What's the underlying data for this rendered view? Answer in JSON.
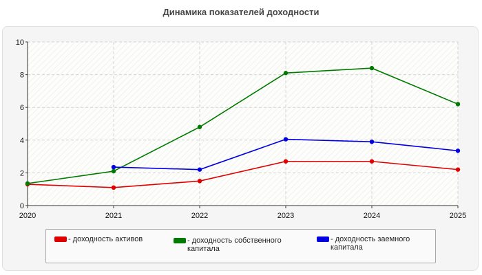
{
  "chart_data": {
    "type": "line",
    "title": "Динамика показателей доходности",
    "x": [
      "2020",
      "2021",
      "2022",
      "2023",
      "2024",
      "2025"
    ],
    "ylim": [
      0,
      10
    ],
    "yticks": [
      0,
      2,
      4,
      6,
      8,
      10
    ],
    "grid": true,
    "legend_position": "bottom",
    "series": [
      {
        "name": "- доходность активов",
        "color": "#e00000",
        "values": [
          1.3,
          1.1,
          1.5,
          2.7,
          2.7,
          2.2
        ]
      },
      {
        "name": "- доходность собственного капитала",
        "color": "#007a00",
        "values": [
          1.35,
          2.1,
          4.8,
          8.1,
          8.4,
          6.2
        ]
      },
      {
        "name": "- доходность заемного капитала",
        "color": "#0000e0",
        "values": [
          null,
          2.35,
          2.2,
          4.05,
          3.9,
          3.35
        ]
      }
    ]
  }
}
